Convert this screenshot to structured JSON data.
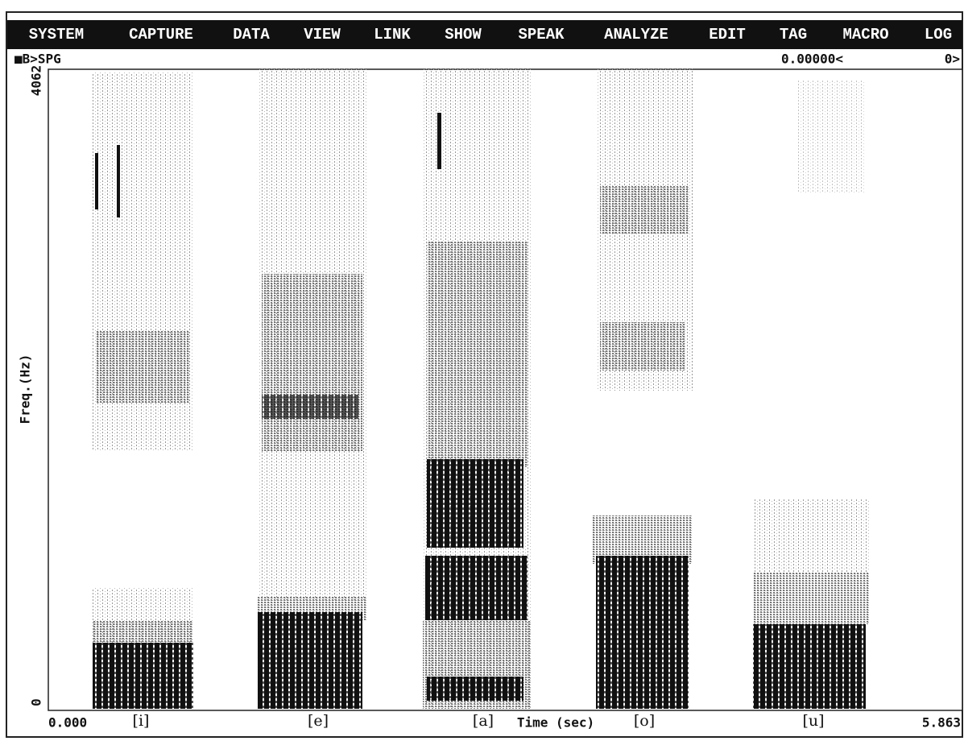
{
  "menu": [
    "SYSTEM",
    "CAPTURE",
    "DATA",
    "VIEW",
    "LINK",
    "SHOW",
    "SPEAK",
    "ANALYZE",
    "EDIT",
    "TAG",
    "MACRO",
    "LOG"
  ],
  "status": {
    "prompt": "■B>SPG",
    "cursor": "0.00000<",
    "count": "0>"
  },
  "y_axis": {
    "max": "4062",
    "min": "0",
    "label": "Freq.(Hz)"
  },
  "x_axis": {
    "start": "0.000",
    "end": "5.863",
    "label": "Time (sec)"
  },
  "segments": [
    "[i]",
    "[e]",
    "[a]",
    "[o]",
    "[u]"
  ]
}
